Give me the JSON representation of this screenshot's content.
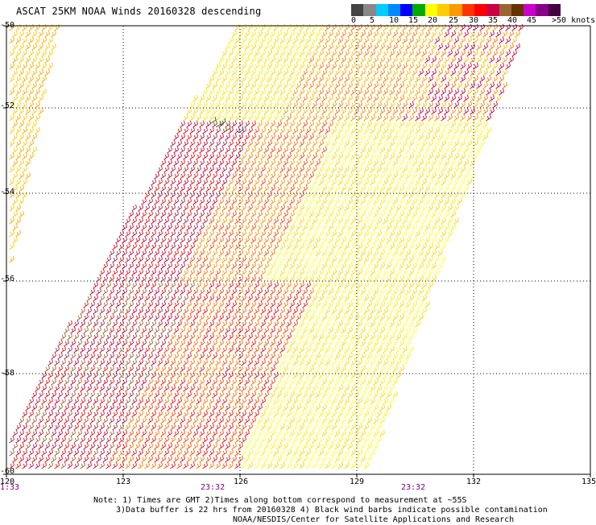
{
  "title": "ASCAT 25KM NOAA Winds 20160328 descending",
  "color_scale": {
    "labels": [
      "0",
      "5",
      "10",
      "15",
      "20",
      "25",
      "30",
      "35",
      "40",
      "45",
      ">50 knots"
    ],
    "colors": [
      "#444444",
      "#888888",
      "#00ccff",
      "#0088ff",
      "#0000ff",
      "#00aa00",
      "#ffff00",
      "#ffcc00",
      "#ff9900",
      "#ff3300",
      "#ff0000",
      "#cc0044",
      "#996633",
      "#663300",
      "#cc00cc",
      "#880088",
      "#440044"
    ]
  },
  "latitudes": [
    "-50",
    "-52",
    "-54",
    "-56",
    "-58",
    "-60"
  ],
  "longitudes": [
    "120",
    "123",
    "126",
    "129",
    "132",
    "135"
  ],
  "times": [
    "1:33",
    "23:32",
    "23:32"
  ],
  "notes": {
    "line1": "Note: 1) Times are GMT 2)Times along bottom correspond to measurement at ~55S",
    "line2": "3)Data buffer is 22 hrs from 20160328 4) Black wind barbs indicate possible contamination",
    "line3": "NOAA/NESDIS/Center for Satellite Applications and Research"
  }
}
